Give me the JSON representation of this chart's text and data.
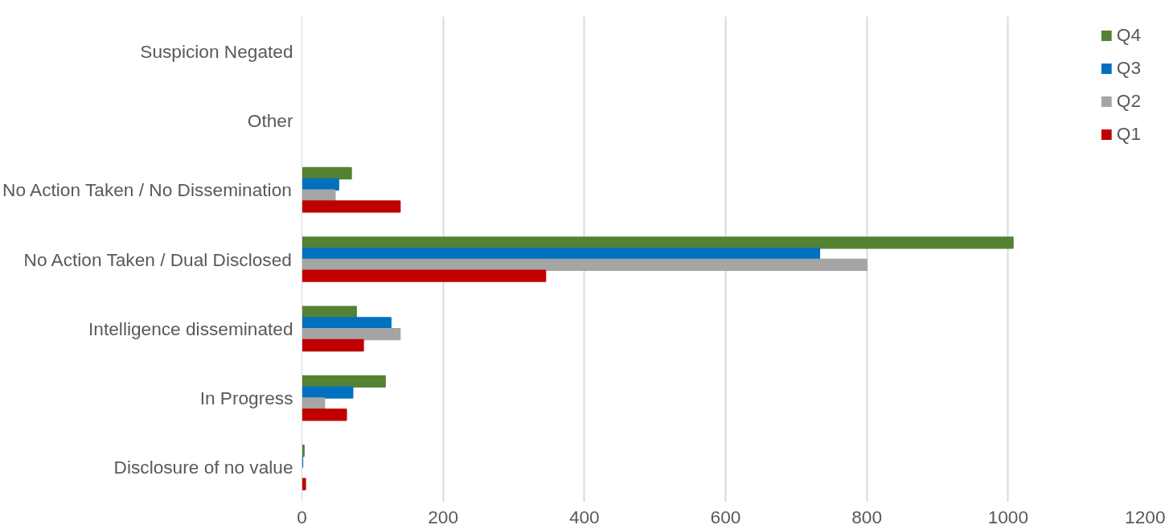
{
  "chart_data": {
    "type": "bar",
    "orientation": "horizontal",
    "categories": [
      "Suspicion Negated",
      "Other",
      "No Action Taken / No Dissemination",
      "No Action Taken / Dual Disclosed",
      "Intelligence disseminated",
      "In Progress",
      "Disclosure of no value"
    ],
    "series": [
      {
        "name": "Q4",
        "color": "#548235",
        "values": [
          0,
          0,
          70,
          1007,
          77,
          118,
          3
        ]
      },
      {
        "name": "Q3",
        "color": "#0070c0",
        "values": [
          0,
          0,
          52,
          733,
          126,
          72,
          1
        ]
      },
      {
        "name": "Q2",
        "color": "#a5a5a5",
        "values": [
          0,
          0,
          47,
          800,
          139,
          32,
          0
        ]
      },
      {
        "name": "Q1",
        "color": "#c00000",
        "values": [
          0,
          0,
          139,
          345,
          87,
          63,
          5
        ]
      }
    ],
    "xlim": [
      0,
      1200
    ],
    "xticks": [
      0,
      200,
      400,
      600,
      800,
      1000,
      1200
    ],
    "grid": "x",
    "legend": "top right"
  }
}
